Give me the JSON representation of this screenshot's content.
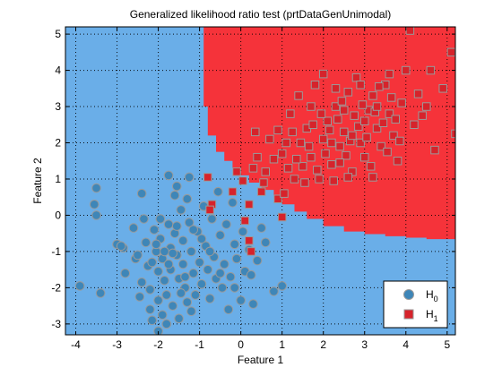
{
  "chart_data": {
    "type": "scatter",
    "title": "Generalized likelihood ratio test (prtDataGenUnimodal)",
    "xlabel": "Feature 1",
    "ylabel": "Feature 2",
    "xlim": [
      -4.25,
      5.2
    ],
    "ylim": [
      -3.3,
      5.2
    ],
    "xticks": [
      -4,
      -3,
      -2,
      -1,
      0,
      1,
      2,
      3,
      4,
      5
    ],
    "yticks": [
      -3,
      -2,
      -1,
      0,
      1,
      2,
      3,
      4,
      5
    ],
    "grid": true,
    "legend_position": "bottom-right",
    "colors": {
      "region_h0": "#6aaee8",
      "region_h1": "#f5333a",
      "h0_marker": "#3e86b8",
      "h1_marker": "#d6232b",
      "marker_edge": "#9a9a9a"
    },
    "decision_boundary": {
      "x": [
        -0.97,
        -0.9,
        -0.8,
        -0.6,
        -0.4,
        -0.2,
        0.0,
        0.2,
        0.5,
        0.8,
        1.0,
        1.3,
        1.6,
        2.0,
        2.5,
        3.0,
        3.5,
        4.0,
        4.5,
        5.2
      ],
      "y": [
        5.2,
        3.0,
        2.2,
        1.75,
        1.5,
        1.3,
        1.1,
        0.9,
        0.7,
        0.45,
        0.3,
        0.1,
        -0.1,
        -0.3,
        -0.45,
        -0.52,
        -0.58,
        -0.62,
        -0.66,
        -0.68
      ]
    },
    "series": [
      {
        "name": "H_0",
        "marker": "circle",
        "points": [
          [
            -3.9,
            -1.95
          ],
          [
            -3.5,
            0.75
          ],
          [
            -3.55,
            0.3
          ],
          [
            -3.5,
            0.0
          ],
          [
            -3.4,
            -2.15
          ],
          [
            -3.0,
            -0.8
          ],
          [
            -2.85,
            -0.9
          ],
          [
            -2.8,
            -1.6
          ],
          [
            -2.6,
            -0.35
          ],
          [
            -2.55,
            -1.2
          ],
          [
            -2.4,
            0.6
          ],
          [
            -2.4,
            -1.85
          ],
          [
            -2.35,
            -0.1
          ],
          [
            -2.3,
            -0.75
          ],
          [
            -2.25,
            -1.4
          ],
          [
            -2.2,
            -2.05
          ],
          [
            -2.2,
            -2.6
          ],
          [
            -2.1,
            -0.4
          ],
          [
            -2.05,
            -1.0
          ],
          [
            -2.0,
            -1.55
          ],
          [
            -2.0,
            -2.35
          ],
          [
            -1.95,
            -0.65
          ],
          [
            -1.9,
            -1.2
          ],
          [
            -1.85,
            -1.8
          ],
          [
            -1.8,
            -2.2
          ],
          [
            -1.8,
            -3.0
          ],
          [
            -1.75,
            -0.25
          ],
          [
            -1.7,
            -0.9
          ],
          [
            -1.7,
            -1.5
          ],
          [
            -1.65,
            -2.5
          ],
          [
            -1.6,
            0.55
          ],
          [
            -1.6,
            -0.5
          ],
          [
            -1.55,
            -1.1
          ],
          [
            -1.5,
            -1.75
          ],
          [
            -1.5,
            -2.85
          ],
          [
            -1.45,
            0.15
          ],
          [
            -1.4,
            -0.7
          ],
          [
            -1.4,
            -1.35
          ],
          [
            -1.35,
            -2.0
          ],
          [
            -1.3,
            -2.4
          ],
          [
            -1.3,
            0.45
          ],
          [
            -1.25,
            -0.2
          ],
          [
            -1.2,
            -1.0
          ],
          [
            -1.15,
            -1.6
          ],
          [
            -1.1,
            -2.2
          ],
          [
            -1.05,
            -0.45
          ],
          [
            -1.0,
            -1.3
          ],
          [
            -0.95,
            -1.9
          ],
          [
            -0.9,
            0.25
          ],
          [
            -0.85,
            -0.85
          ],
          [
            -0.8,
            -1.5
          ],
          [
            -0.75,
            -2.3
          ],
          [
            -0.7,
            -0.1
          ],
          [
            -0.65,
            -1.15
          ],
          [
            -0.6,
            -1.75
          ],
          [
            -0.55,
            0.65
          ],
          [
            -0.5,
            -0.55
          ],
          [
            -0.45,
            -2.0
          ],
          [
            -0.4,
            -1.35
          ],
          [
            -0.35,
            -0.25
          ],
          [
            -0.3,
            -2.6
          ],
          [
            -0.25,
            -1.7
          ],
          [
            -0.2,
            0.35
          ],
          [
            -0.15,
            -0.8
          ],
          [
            -0.1,
            -1.2
          ],
          [
            0.0,
            -2.35
          ],
          [
            0.05,
            -0.45
          ],
          [
            0.1,
            -1.55
          ],
          [
            0.2,
            -0.95
          ],
          [
            0.3,
            -2.45
          ],
          [
            0.4,
            -1.25
          ],
          [
            0.6,
            -0.75
          ],
          [
            0.8,
            -2.1
          ],
          [
            1.0,
            -1.95
          ],
          [
            -1.75,
            1.1
          ],
          [
            -1.55,
            0.8
          ],
          [
            -1.25,
            1.05
          ],
          [
            -2.9,
            -0.85
          ],
          [
            -2.5,
            -1.1
          ],
          [
            -1.95,
            -0.1
          ],
          [
            -2.15,
            -1.3
          ],
          [
            -1.65,
            -1.05
          ],
          [
            -1.35,
            -1.7
          ],
          [
            -1.9,
            -2.75
          ],
          [
            -2.45,
            -2.25
          ],
          [
            -1.15,
            -0.4
          ],
          [
            -0.95,
            -0.65
          ],
          [
            -1.75,
            -1.35
          ],
          [
            -2.05,
            -0.8
          ],
          [
            -1.45,
            -2.15
          ],
          [
            -1.85,
            -1.0
          ],
          [
            -1.55,
            -0.3
          ],
          [
            -0.75,
            -1.0
          ],
          [
            -2.15,
            -2.9
          ],
          [
            -2.0,
            -3.2
          ],
          [
            -1.2,
            -2.65
          ],
          [
            -0.5,
            -1.6
          ],
          [
            -0.15,
            -2.0
          ],
          [
            0.25,
            -1.65
          ],
          [
            0.5,
            -0.35
          ]
        ]
      },
      {
        "name": "H_1",
        "marker": "square",
        "points": [
          [
            -0.8,
            1.05
          ],
          [
            -0.7,
            0.3
          ],
          [
            -0.75,
            0.15
          ],
          [
            -0.2,
            0.65
          ],
          [
            0.1,
            -0.15
          ],
          [
            0.2,
            0.3
          ],
          [
            0.2,
            -0.7
          ],
          [
            0.5,
            0.65
          ],
          [
            0.9,
            0.45
          ],
          [
            1.0,
            -0.05
          ],
          [
            1.3,
            1.0
          ],
          [
            1.5,
            1.35
          ],
          [
            1.7,
            1.6
          ],
          [
            1.9,
            1.0
          ],
          [
            2.0,
            2.1
          ],
          [
            2.1,
            2.6
          ],
          [
            2.2,
            1.4
          ],
          [
            2.3,
            3.0
          ],
          [
            2.4,
            1.9
          ],
          [
            2.5,
            2.3
          ],
          [
            2.6,
            3.4
          ],
          [
            2.7,
            1.2
          ],
          [
            2.75,
            2.75
          ],
          [
            2.8,
            3.8
          ],
          [
            2.9,
            2.0
          ],
          [
            3.0,
            1.6
          ],
          [
            3.1,
            2.9
          ],
          [
            3.2,
            3.3
          ],
          [
            3.3,
            2.4
          ],
          [
            3.4,
            1.9
          ],
          [
            3.5,
            3.6
          ],
          [
            3.6,
            2.8
          ],
          [
            3.7,
            2.2
          ],
          [
            3.8,
            1.5
          ],
          [
            3.9,
            3.1
          ],
          [
            4.0,
            4.0
          ],
          [
            4.1,
            5.1
          ],
          [
            4.2,
            2.5
          ],
          [
            4.5,
            3.0
          ],
          [
            4.6,
            4.0
          ],
          [
            4.7,
            1.8
          ],
          [
            4.9,
            3.5
          ],
          [
            5.1,
            4.5
          ],
          [
            5.2,
            2.25
          ],
          [
            1.1,
            2.0
          ],
          [
            1.2,
            2.8
          ],
          [
            1.4,
            3.3
          ],
          [
            1.6,
            2.4
          ],
          [
            1.8,
            3.6
          ],
          [
            2.0,
            3.9
          ],
          [
            2.2,
            2.0
          ],
          [
            2.35,
            2.65
          ],
          [
            2.45,
            3.15
          ],
          [
            2.55,
            1.65
          ],
          [
            2.65,
            2.05
          ],
          [
            2.85,
            2.45
          ],
          [
            2.95,
            3.05
          ],
          [
            3.05,
            2.15
          ],
          [
            3.15,
            1.35
          ],
          [
            3.25,
            2.85
          ],
          [
            3.35,
            3.55
          ],
          [
            3.45,
            2.55
          ],
          [
            3.55,
            1.75
          ],
          [
            3.65,
            3.25
          ],
          [
            3.75,
            2.65
          ],
          [
            3.85,
            2.05
          ],
          [
            0.3,
            1.3
          ],
          [
            0.4,
            1.6
          ],
          [
            0.6,
            1.2
          ],
          [
            0.7,
            2.1
          ],
          [
            0.8,
            1.55
          ],
          [
            0.9,
            2.35
          ],
          [
            1.0,
            1.7
          ],
          [
            1.15,
            1.3
          ],
          [
            1.25,
            2.3
          ],
          [
            1.35,
            1.55
          ],
          [
            1.45,
            2.0
          ],
          [
            1.55,
            0.9
          ],
          [
            1.65,
            1.9
          ],
          [
            1.75,
            2.5
          ],
          [
            1.85,
            1.25
          ],
          [
            1.95,
            2.8
          ],
          [
            2.05,
            1.7
          ],
          [
            2.15,
            2.35
          ],
          [
            2.25,
            0.95
          ],
          [
            2.4,
            1.45
          ],
          [
            2.5,
            2.9
          ],
          [
            2.6,
            1.05
          ],
          [
            2.7,
            2.2
          ],
          [
            3.0,
            2.6
          ],
          [
            3.3,
            3.0
          ],
          [
            3.6,
            3.9
          ],
          [
            4.3,
            3.35
          ],
          [
            4.4,
            2.75
          ],
          [
            0.55,
            0.9
          ],
          [
            1.7,
            3.0
          ],
          [
            2.3,
            3.5
          ],
          [
            2.9,
            3.6
          ],
          [
            3.2,
            1.05
          ],
          [
            -0.1,
            1.2
          ],
          [
            0.05,
            0.95
          ],
          [
            0.35,
            2.3
          ],
          [
            1.05,
            0.6
          ],
          [
            0.25,
            -1.0
          ]
        ]
      }
    ]
  }
}
